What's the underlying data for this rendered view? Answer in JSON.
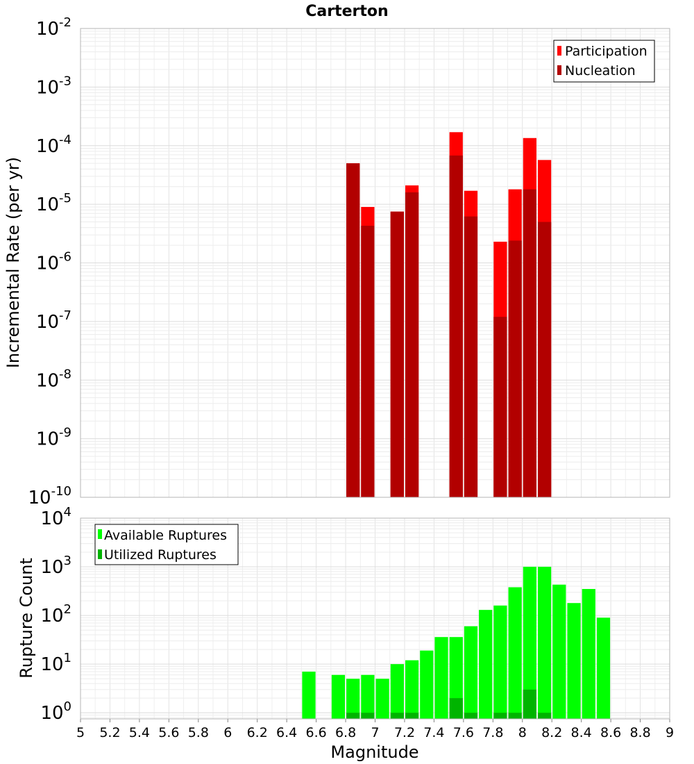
{
  "chart_data": [
    {
      "type": "bar",
      "title": "Carterton",
      "xlabel": "",
      "ylabel": "Incremental Rate (per yr)",
      "yscale": "log",
      "ylim": [
        1e-10,
        0.01
      ],
      "xlim": [
        5,
        9
      ],
      "grid": true,
      "legend_position": "top-right",
      "y_tick_exponents": [
        -10,
        -9,
        -8,
        -7,
        -6,
        -5,
        -4,
        -3,
        -2
      ],
      "series": [
        {
          "name": "Participation",
          "color": "#ff0000",
          "x": [
            6.85,
            6.95,
            7.15,
            7.25,
            7.55,
            7.65,
            7.85,
            7.95,
            8.05,
            8.15
          ],
          "values": [
            5e-05,
            9e-06,
            7.5e-06,
            2.1e-05,
            0.00017,
            1.7e-05,
            2.3e-06,
            1.8e-05,
            0.000135,
            5.7e-05
          ]
        },
        {
          "name": "Nucleation",
          "color": "#b20000",
          "x": [
            6.85,
            6.95,
            7.15,
            7.25,
            7.55,
            7.65,
            7.85,
            7.95,
            8.05,
            8.15
          ],
          "values": [
            5e-05,
            4.3e-06,
            7.5e-06,
            1.6e-05,
            6.8e-05,
            6.2e-06,
            1.2e-07,
            2.4e-06,
            1.8e-05,
            5e-06
          ]
        }
      ]
    },
    {
      "type": "bar",
      "title": "",
      "xlabel": "Magnitude",
      "ylabel": "Rupture Count",
      "yscale": "log",
      "ylim": [
        0.75,
        10000
      ],
      "xlim": [
        5,
        9
      ],
      "grid": true,
      "legend_position": "top-left",
      "y_tick_exponents": [
        0,
        1,
        2,
        3,
        4
      ],
      "x_ticks": [
        "5",
        "5.2",
        "5.4",
        "5.6",
        "5.8",
        "6",
        "6.2",
        "6.4",
        "6.6",
        "6.8",
        "7",
        "7.2",
        "7.4",
        "7.6",
        "7.8",
        "8",
        "8.2",
        "8.4",
        "8.6",
        "8.8",
        "9"
      ],
      "series": [
        {
          "name": "Available Ruptures",
          "color": "#00ff00",
          "x": [
            6.55,
            6.75,
            6.85,
            6.95,
            7.05,
            7.15,
            7.25,
            7.35,
            7.45,
            7.55,
            7.65,
            7.75,
            7.85,
            7.95,
            8.05,
            8.15,
            8.25,
            8.35,
            8.45,
            8.55
          ],
          "values": [
            7,
            6,
            5,
            6,
            5,
            10,
            12,
            19,
            36,
            36,
            60,
            130,
            160,
            380,
            1000,
            1000,
            430,
            180,
            350,
            90
          ]
        },
        {
          "name": "Utilized Ruptures",
          "color": "#00b400",
          "x": [
            6.85,
            6.95,
            7.15,
            7.25,
            7.55,
            7.65,
            7.85,
            7.95,
            8.05,
            8.15
          ],
          "values": [
            1,
            1,
            1,
            1,
            2,
            1,
            1,
            1,
            3,
            1
          ]
        }
      ]
    }
  ]
}
